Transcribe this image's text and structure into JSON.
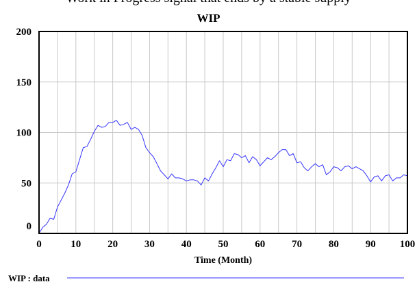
{
  "header": {
    "top_text": "Work in Progress signal that ends by a stable supply"
  },
  "chart_data": {
    "type": "line",
    "title": "WIP",
    "xlabel": "Time (Month)",
    "ylabel": "",
    "xlim": [
      0,
      100
    ],
    "ylim": [
      0,
      200
    ],
    "xticks": [
      0,
      10,
      20,
      30,
      40,
      50,
      60,
      70,
      80,
      90,
      100
    ],
    "yticks": [
      0,
      50,
      100,
      150,
      200
    ],
    "grid": true,
    "legend_position": "bottom-left",
    "series": [
      {
        "name": "WIP : data",
        "color": "#3333ff",
        "x": [
          0,
          1,
          2,
          3,
          4,
          5,
          6,
          7,
          8,
          9,
          10,
          11,
          12,
          13,
          14,
          15,
          16,
          17,
          18,
          19,
          20,
          21,
          22,
          23,
          24,
          25,
          26,
          27,
          28,
          29,
          30,
          31,
          32,
          33,
          34,
          35,
          36,
          37,
          38,
          39,
          40,
          41,
          42,
          43,
          44,
          45,
          46,
          47,
          48,
          49,
          50,
          51,
          52,
          53,
          54,
          55,
          56,
          57,
          58,
          59,
          60,
          61,
          62,
          63,
          64,
          65,
          66,
          67,
          68,
          69,
          70,
          71,
          72,
          73,
          74,
          75,
          76,
          77,
          78,
          79,
          80,
          81,
          82,
          83,
          84,
          85,
          86,
          87,
          88,
          89,
          90,
          91,
          92,
          93,
          94,
          95,
          96,
          97,
          98,
          99,
          100
        ],
        "values": [
          0,
          6,
          9,
          15,
          14,
          26,
          33,
          40,
          48,
          59,
          61,
          73,
          85,
          86,
          93,
          101,
          107,
          105,
          106,
          110,
          110,
          112,
          107,
          108,
          110,
          103,
          105,
          103,
          97,
          85,
          80,
          76,
          69,
          62,
          58,
          54,
          59,
          55,
          55,
          54,
          52,
          53,
          53,
          52,
          48,
          55,
          52,
          59,
          65,
          72,
          66,
          73,
          72,
          79,
          78,
          75,
          77,
          70,
          76,
          73,
          67,
          71,
          75,
          73,
          76,
          80,
          83,
          83,
          77,
          79,
          70,
          71,
          65,
          62,
          66,
          69,
          66,
          68,
          58,
          61,
          66,
          65,
          62,
          66,
          67,
          64,
          66,
          64,
          62,
          57,
          51,
          56,
          57,
          52,
          57,
          58,
          52,
          55,
          55,
          58,
          57
        ]
      }
    ]
  }
}
